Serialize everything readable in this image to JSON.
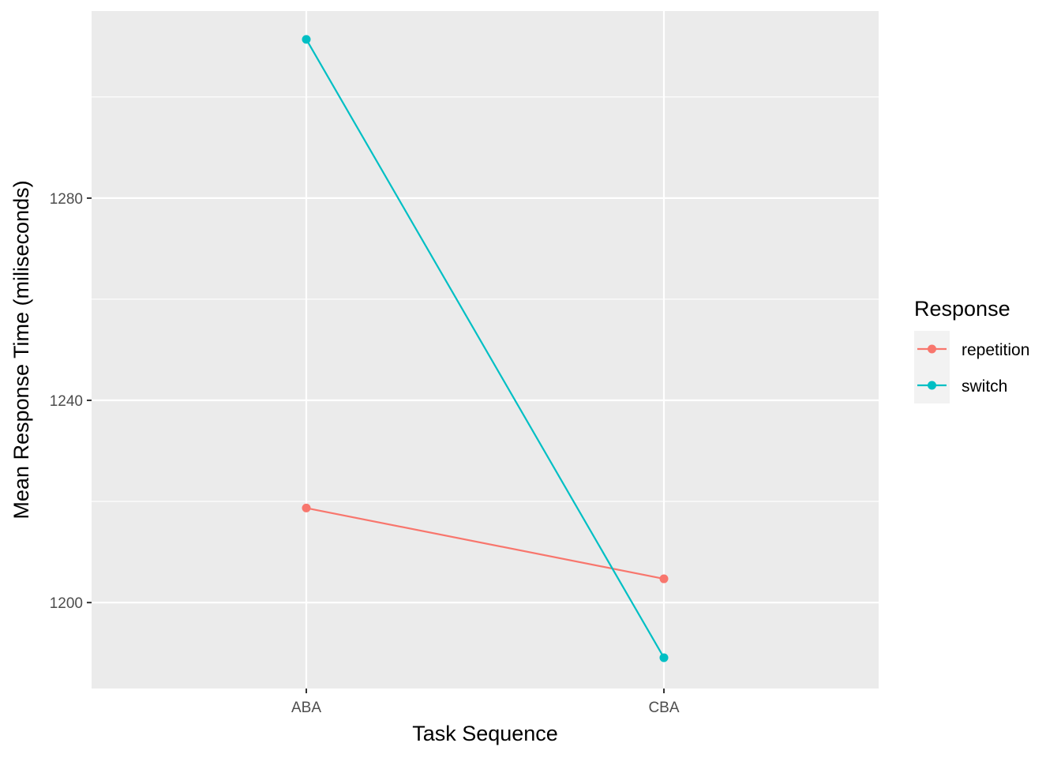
{
  "chart_data": {
    "type": "line",
    "xlabel": "Task Sequence",
    "ylabel": "Mean Response Time (miliseconds)",
    "categories": [
      "ABA",
      "CBA"
    ],
    "y_ticks": [
      1200,
      1240,
      1280
    ],
    "ylim": [
      1183,
      1317
    ],
    "grid": true,
    "legend_position": "right",
    "legend_title": "Response",
    "series": [
      {
        "name": "repetition",
        "color": "#F8766D",
        "values": [
          1218.7,
          1204.7
        ]
      },
      {
        "name": "switch",
        "color": "#00BFC4",
        "values": [
          1311.4,
          1189.1
        ]
      }
    ]
  }
}
